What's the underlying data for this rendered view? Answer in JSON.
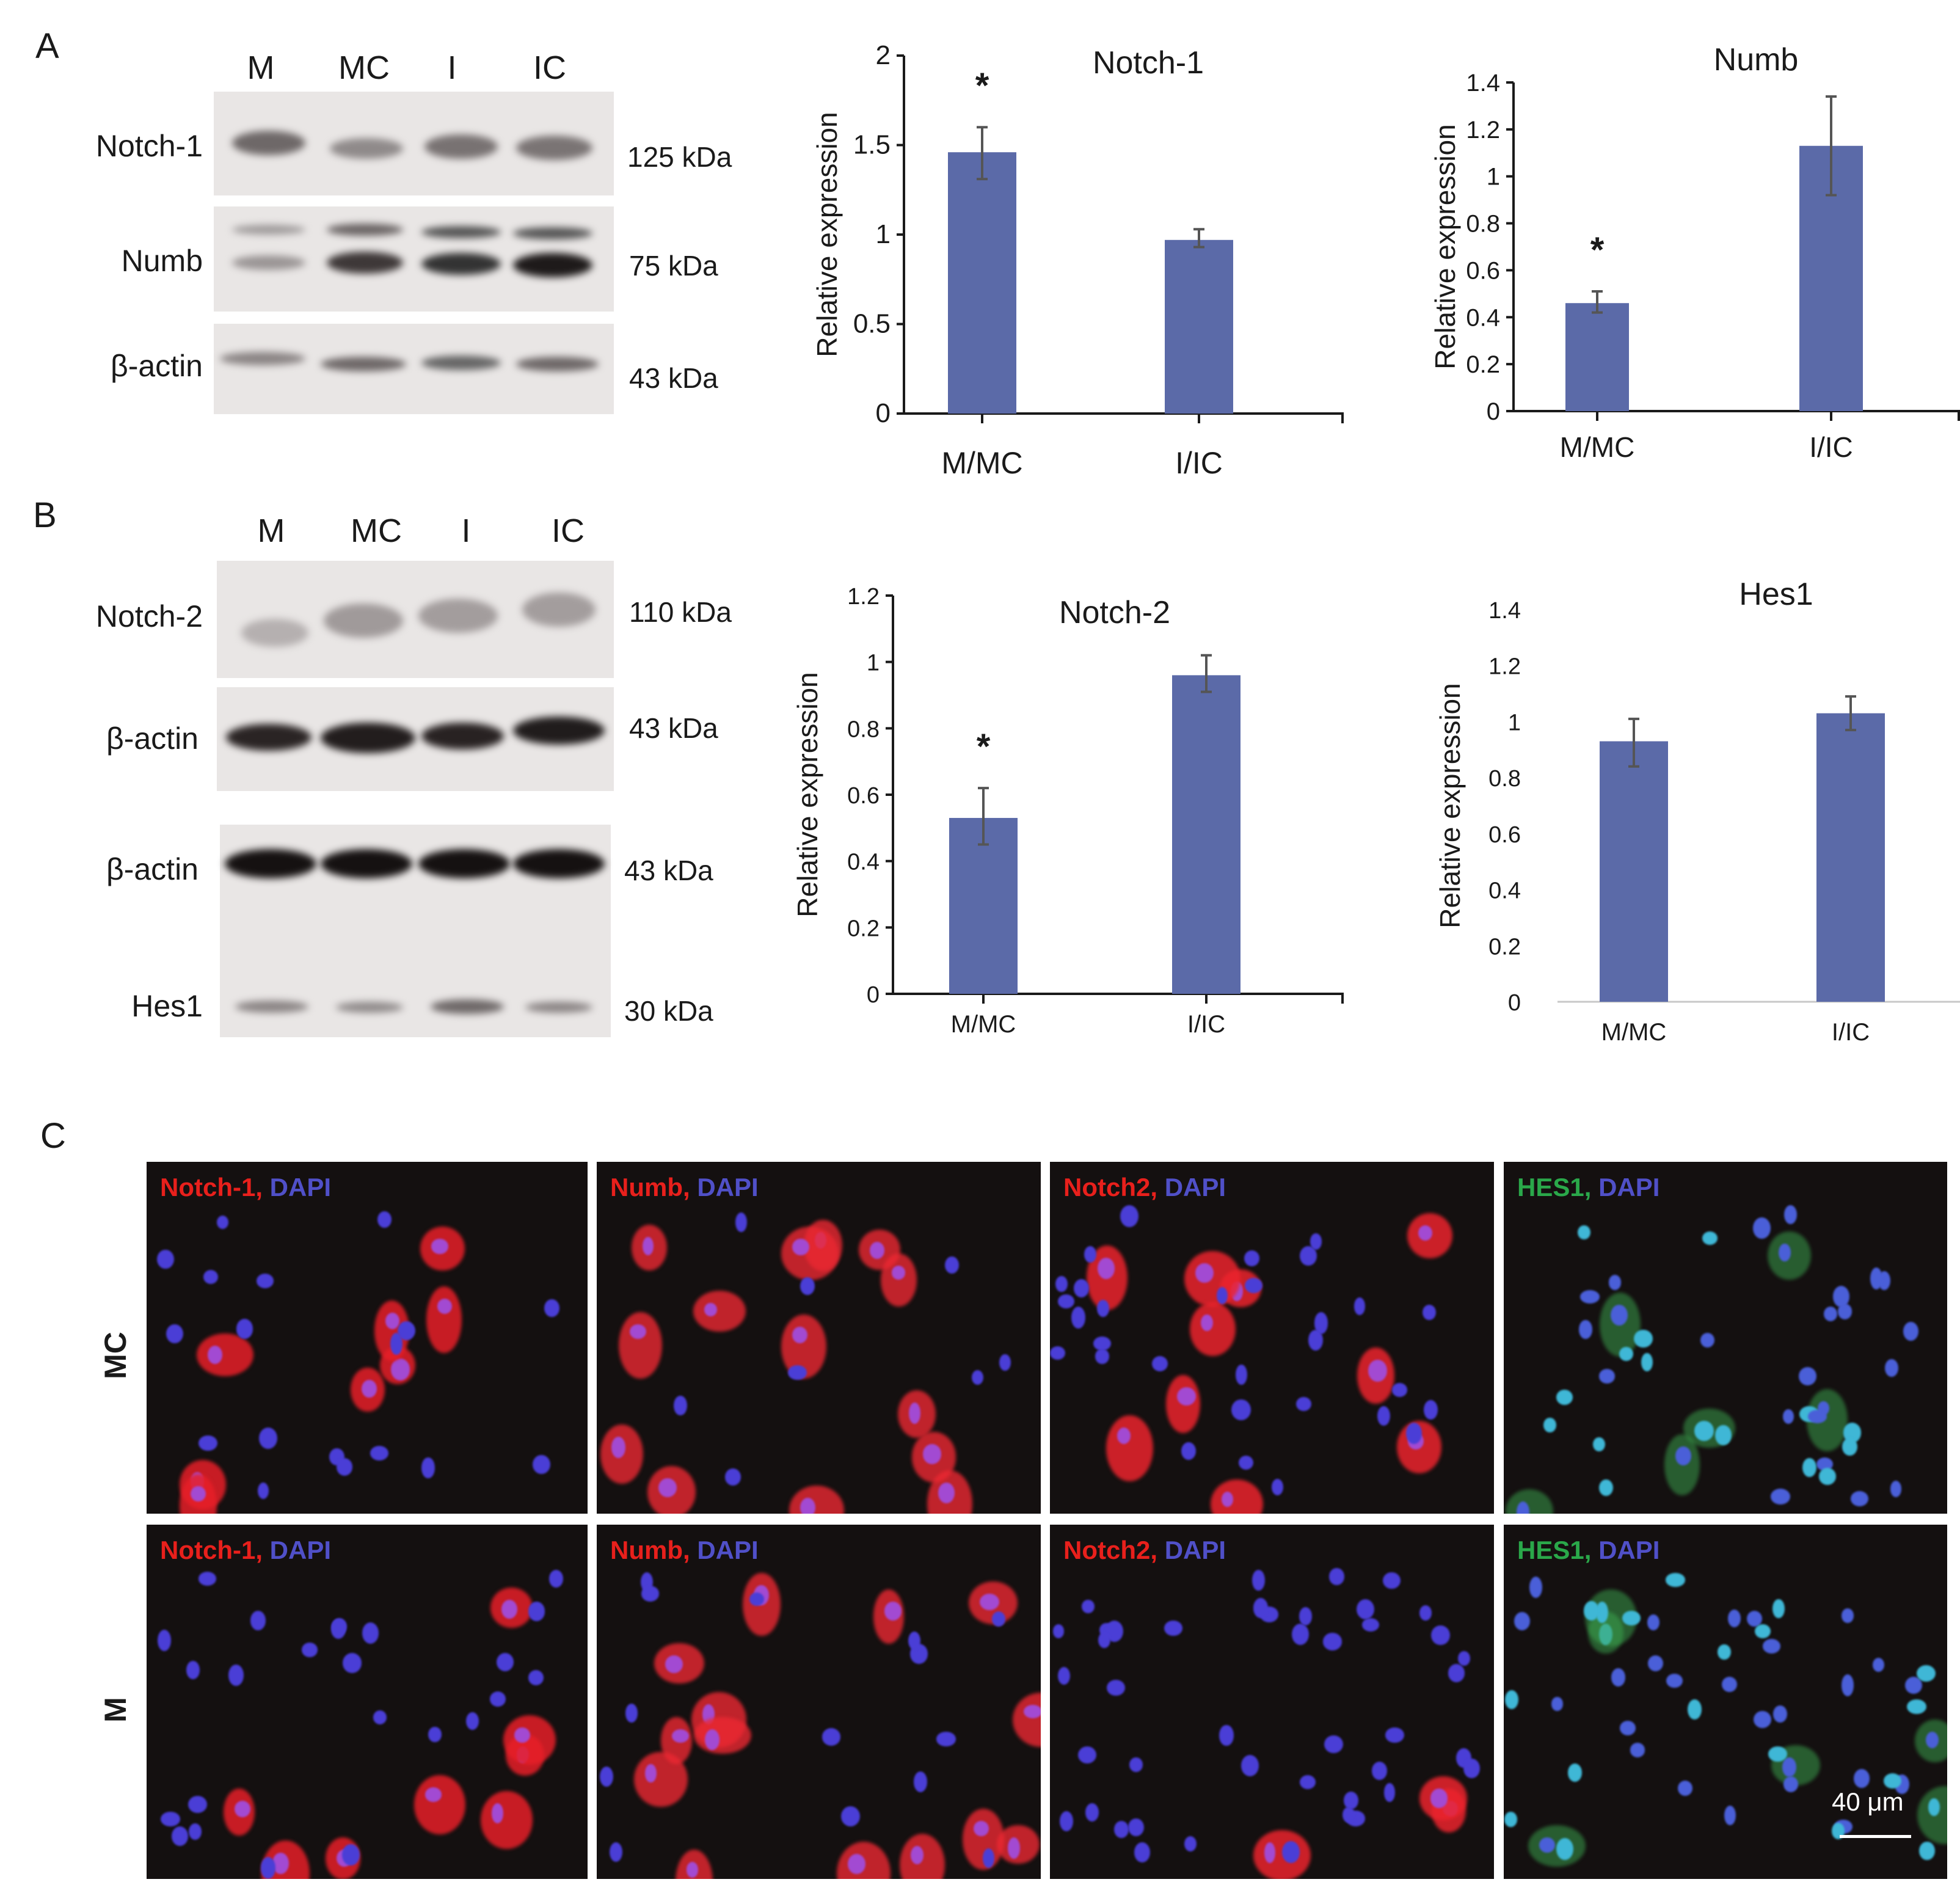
{
  "panels": {
    "A": "A",
    "B": "B",
    "C": "C"
  },
  "blot_a": {
    "lanes": [
      "M",
      "MC",
      "I",
      "IC"
    ],
    "rows": [
      {
        "label": "Notch-1",
        "kda": "125 kDa"
      },
      {
        "label": "Numb",
        "kda": "75 kDa"
      },
      {
        "label": "β-actin",
        "kda": "43 kDa"
      }
    ]
  },
  "blot_b": {
    "lanes": [
      "M",
      "MC",
      "I",
      "IC"
    ],
    "rows": [
      {
        "label": "Notch-2",
        "kda": "110 kDa"
      },
      {
        "label": "β-actin",
        "kda": "43 kDa"
      },
      {
        "label": "β-actin",
        "kda": "43 kDa"
      },
      {
        "label": "Hes1",
        "kda": "30 kDa"
      }
    ]
  },
  "colors": {
    "bar": "#5b6aa8",
    "error": "#555555",
    "axis": "#1a1a1a"
  },
  "chart_data": [
    {
      "type": "bar",
      "title": "Notch-1",
      "xlabel": "",
      "ylabel": "Relative expression",
      "categories": [
        "M/MC",
        "I/IC"
      ],
      "values": [
        1.46,
        0.97
      ],
      "error_low": [
        1.31,
        0.93
      ],
      "error_high": [
        1.6,
        1.03
      ],
      "significance": [
        "*",
        ""
      ],
      "ylim": [
        0,
        2
      ],
      "yticks": [
        "0",
        "0.5",
        "1",
        "1.5",
        "2"
      ],
      "grid": false
    },
    {
      "type": "bar",
      "title": "Numb",
      "xlabel": "",
      "ylabel": "Relative expression",
      "categories": [
        "M/MC",
        "I/IC"
      ],
      "values": [
        0.46,
        1.13
      ],
      "error_low": [
        0.42,
        0.92
      ],
      "error_high": [
        0.51,
        1.34
      ],
      "significance": [
        "*",
        ""
      ],
      "ylim": [
        0,
        1.4
      ],
      "yticks": [
        "0",
        "0.2",
        "0.4",
        "0.6",
        "0.8",
        "1",
        "1.2",
        "1.4"
      ],
      "grid": false
    },
    {
      "type": "bar",
      "title": "Notch-2",
      "xlabel": "",
      "ylabel": "Relative expression",
      "categories": [
        "M/MC",
        "I/IC"
      ],
      "values": [
        0.53,
        0.96
      ],
      "error_low": [
        0.45,
        0.91
      ],
      "error_high": [
        0.62,
        1.02
      ],
      "significance": [
        "*",
        ""
      ],
      "ylim": [
        0,
        1.2
      ],
      "yticks": [
        "0",
        "0.2",
        "0.4",
        "0.6",
        "0.8",
        "1",
        "1.2"
      ],
      "grid": false
    },
    {
      "type": "bar",
      "title": "Hes1",
      "xlabel": "",
      "ylabel": "Relative expression",
      "categories": [
        "M/MC",
        "I/IC"
      ],
      "values": [
        0.93,
        1.03
      ],
      "error_low": [
        0.84,
        0.97
      ],
      "error_high": [
        1.01,
        1.09
      ],
      "significance": [
        "",
        ""
      ],
      "ylim": [
        0,
        1.4
      ],
      "yticks": [
        "0",
        "0.2",
        "0.4",
        "0.6",
        "0.8",
        "1",
        "1.2",
        "1.4"
      ],
      "grid": false
    }
  ],
  "micrographs": {
    "row_labels": [
      "MC",
      "M"
    ],
    "columns": [
      {
        "marker": "Notch-1,",
        "marker_color": "#e8201c",
        "counter": "DAPI",
        "counter_color": "#5050c8"
      },
      {
        "marker": "Numb,",
        "marker_color": "#e8201c",
        "counter": "DAPI",
        "counter_color": "#5050c8"
      },
      {
        "marker": "Notch2,",
        "marker_color": "#e8201c",
        "counter": "DAPI",
        "counter_color": "#5050c8"
      },
      {
        "marker": "HES1,",
        "marker_color": "#2aa84a",
        "counter": "DAPI",
        "counter_color": "#5050c8"
      }
    ],
    "scale_bar": "40 μm"
  }
}
